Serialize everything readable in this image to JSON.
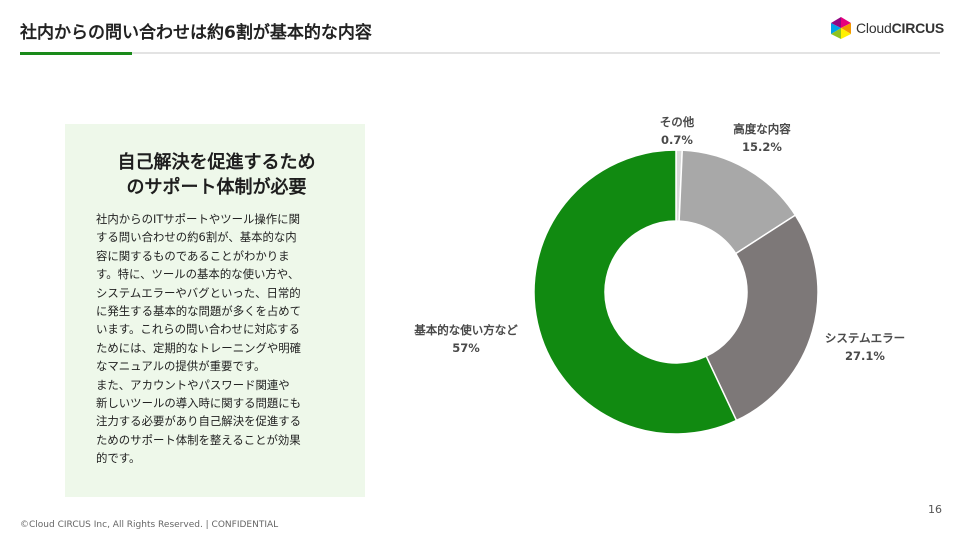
{
  "header": {
    "title": "社内からの問い合わせは約6割が基本的な内容",
    "logo_text_a": "Cloud",
    "logo_text_b": "CIRCUS"
  },
  "card": {
    "heading_line1": "自己解決を促進するため",
    "heading_line2": "のサポート体制が必要",
    "body": "社内からのITサポートやツール操作に関\nする問い合わせの約6割が、基本的な内\n容に関するものであることがわかりま\nす。特に、ツールの基本的な使い方や、\nシステムエラーやバグといった、日常的\nに発生する基本的な問題が多くを占めて\nいます。これらの問い合わせに対応する\nためには、定期的なトレーニングや明確\nなマニュアルの提供が重要です。\nまた、アカウントやパスワード関連や\n新しいツールの導入時に関する問題にも\n注力する必要があり自己解決を促進する\nためのサポート体制を整えることが効果\n的です。"
  },
  "chart_data": {
    "type": "pie",
    "donut": true,
    "legend": "none",
    "slices": [
      {
        "label": "その他",
        "value_text": "0.7%",
        "value": 0.7,
        "color": "#d9d9d9"
      },
      {
        "label": "高度な内容",
        "value_text": "15.2%",
        "value": 15.2,
        "color": "#a8a8a8"
      },
      {
        "label": "システムエラー",
        "value_text": "27.1%",
        "value": 27.1,
        "color": "#7d7878"
      },
      {
        "label": "基本的な使い方など",
        "value_text": "57%",
        "value": 57,
        "color": "#118a11"
      }
    ]
  },
  "footer": {
    "page_number": "16",
    "copyright": "©Cloud CIRCUS Inc, All Rights Reserved. | CONFIDENTIAL"
  },
  "colors": {
    "accent": "#1a8a1a",
    "card_bg": "#eef8ea"
  }
}
